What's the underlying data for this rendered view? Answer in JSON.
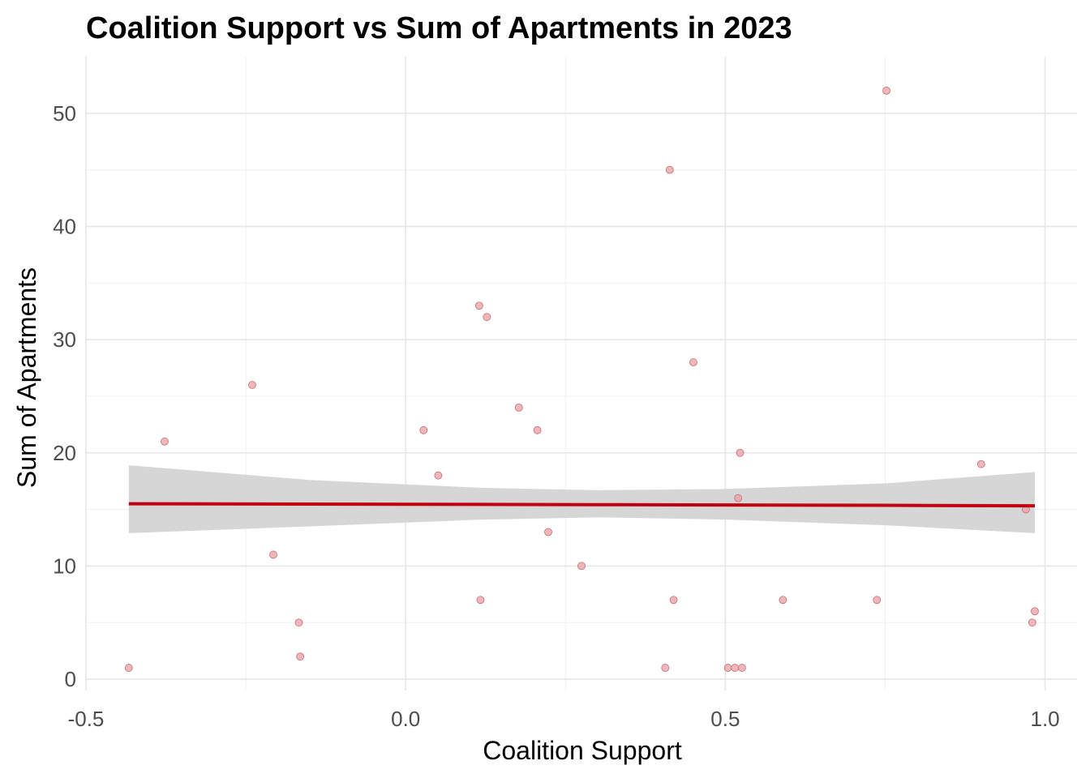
{
  "chart_data": {
    "type": "scatter",
    "title": "Coalition Support vs Sum of Apartments in 2023",
    "xlabel": "Coalition Support",
    "ylabel": "Sum of Apartments",
    "xlim": [
      -0.5,
      1.05
    ],
    "ylim": [
      -1,
      55
    ],
    "xticks": [
      -0.5,
      0.0,
      0.5,
      1.0
    ],
    "xtick_labels": [
      "-0.5",
      "0.0",
      "0.5",
      "1.0"
    ],
    "yticks": [
      0,
      10,
      20,
      30,
      40,
      50
    ],
    "ytick_labels": [
      "0",
      "10",
      "20",
      "30",
      "40",
      "50"
    ],
    "grid": true,
    "point_color": "#e8a0a4",
    "point_stroke": "#c86a70",
    "line_color": "#c00010",
    "band_color": "#d4d4d4",
    "points": [
      {
        "x": -0.433,
        "y": 1
      },
      {
        "x": -0.377,
        "y": 21
      },
      {
        "x": -0.24,
        "y": 26
      },
      {
        "x": -0.207,
        "y": 11
      },
      {
        "x": -0.167,
        "y": 5
      },
      {
        "x": -0.165,
        "y": 2
      },
      {
        "x": 0.028,
        "y": 22
      },
      {
        "x": 0.051,
        "y": 18
      },
      {
        "x": 0.115,
        "y": 33
      },
      {
        "x": 0.117,
        "y": 7
      },
      {
        "x": 0.127,
        "y": 32
      },
      {
        "x": 0.177,
        "y": 24
      },
      {
        "x": 0.206,
        "y": 22
      },
      {
        "x": 0.223,
        "y": 13
      },
      {
        "x": 0.275,
        "y": 10
      },
      {
        "x": 0.406,
        "y": 1
      },
      {
        "x": 0.413,
        "y": 45
      },
      {
        "x": 0.419,
        "y": 7
      },
      {
        "x": 0.45,
        "y": 28
      },
      {
        "x": 0.504,
        "y": 1
      },
      {
        "x": 0.515,
        "y": 1
      },
      {
        "x": 0.52,
        "y": 16
      },
      {
        "x": 0.523,
        "y": 20
      },
      {
        "x": 0.526,
        "y": 1
      },
      {
        "x": 0.59,
        "y": 7
      },
      {
        "x": 0.737,
        "y": 7
      },
      {
        "x": 0.752,
        "y": 52
      },
      {
        "x": 0.9,
        "y": 19
      },
      {
        "x": 0.97,
        "y": 15
      },
      {
        "x": 0.98,
        "y": 5
      },
      {
        "x": 0.984,
        "y": 6
      }
    ],
    "trend": {
      "x": [
        -0.433,
        -0.15,
        0.12,
        0.3,
        0.5,
        0.75,
        0.984
      ],
      "fit": [
        15.5,
        15.47,
        15.44,
        15.42,
        15.39,
        15.36,
        15.32
      ],
      "lower": [
        12.9,
        13.5,
        14.1,
        14.3,
        14.1,
        13.6,
        12.9
      ],
      "upper": [
        18.9,
        17.6,
        16.9,
        16.7,
        16.8,
        17.3,
        18.3
      ]
    }
  }
}
